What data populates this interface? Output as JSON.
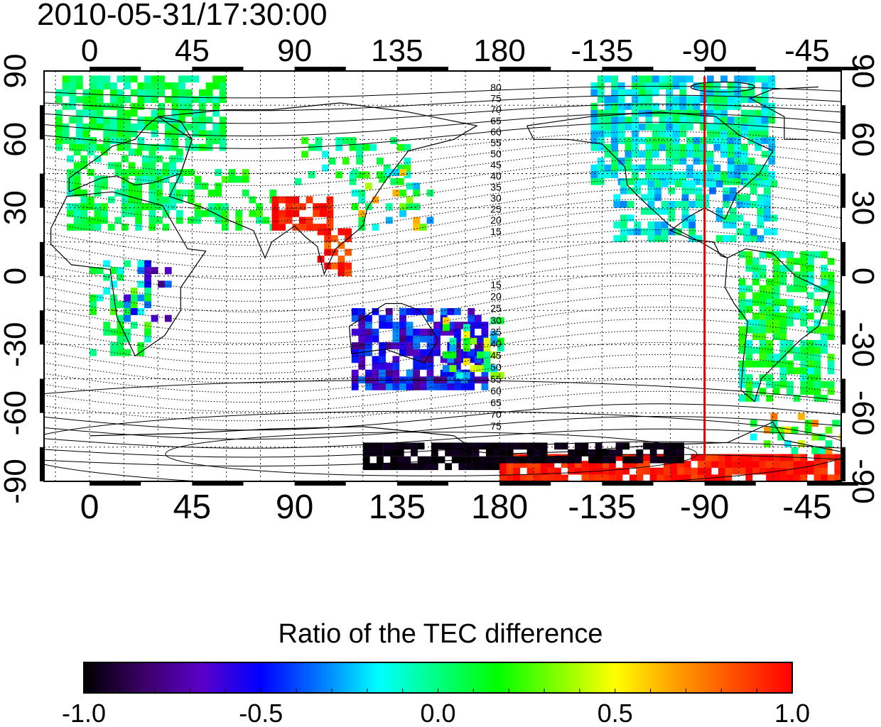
{
  "title": "2010-05-31/17:30:00",
  "map": {
    "lon_ticks": [
      "0",
      "45",
      "90",
      "135",
      "180",
      "-135",
      "-90",
      "-45"
    ],
    "lat_ticks": [
      "90",
      "60",
      "30",
      "0",
      "-30",
      "-60",
      "-90"
    ],
    "lon_range": [
      -20,
      330
    ],
    "lat_range": [
      -90,
      90
    ],
    "meridian_marker": {
      "lon": "-90",
      "color": "#e00000"
    },
    "contour_labels_north": [
      "80",
      "75",
      "70",
      "65",
      "60",
      "55",
      "50",
      "45",
      "40",
      "35",
      "30",
      "25",
      "20",
      "15"
    ],
    "contour_labels_south": [
      "15",
      "20",
      "25",
      "30",
      "35",
      "40",
      "45",
      "50",
      "55",
      "60",
      "65",
      "70",
      "75"
    ],
    "grid": true
  },
  "colorbar": {
    "title": "Ratio of the TEC difference",
    "tick_labels": [
      "-1.0",
      "-0.5",
      "0.0",
      "0.5",
      "1.0"
    ],
    "range": [
      -1.0,
      1.0
    ],
    "colors": [
      "#000000",
      "#3a0066",
      "#5a00c8",
      "#0000ff",
      "#0078ff",
      "#00ffff",
      "#00ff80",
      "#00ff00",
      "#80ff00",
      "#ffff00",
      "#ffa000",
      "#ff5000",
      "#ff0000"
    ]
  }
}
